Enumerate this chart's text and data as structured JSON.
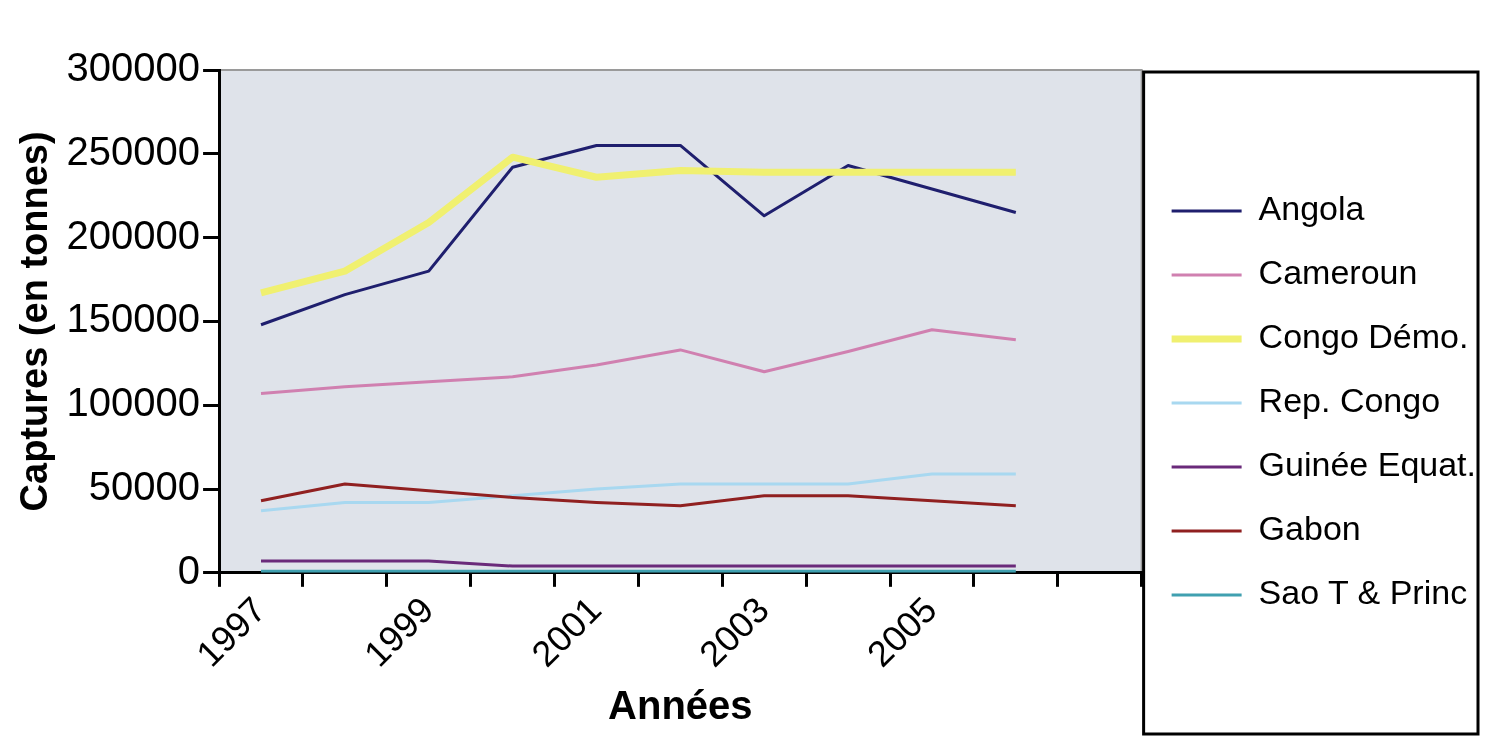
{
  "chart_data": {
    "type": "line",
    "xlabel": "Années",
    "ylabel": "Captures (en tonnes)",
    "categories": [
      "1997",
      null,
      "1999",
      null,
      "2001",
      null,
      "2003",
      null,
      "2005",
      null,
      null
    ],
    "series": [
      {
        "name": "Angola",
        "color": "#1f1f6e",
        "values": [
          148000,
          166000,
          180000,
          242000,
          255000,
          255000,
          213000,
          243000,
          229000,
          215000,
          null
        ]
      },
      {
        "name": "Cameroun",
        "color": "#d080b0",
        "values": [
          107000,
          111000,
          114000,
          117000,
          124000,
          133000,
          120000,
          132000,
          145000,
          139000,
          null
        ]
      },
      {
        "name": "Congo Démo.",
        "color": "#f0f070",
        "values": [
          167000,
          180000,
          209000,
          248000,
          236000,
          240000,
          239000,
          239000,
          239000,
          239000,
          null
        ]
      },
      {
        "name": "Rep. Congo",
        "color": "#a8d8f0",
        "values": [
          37000,
          42000,
          42000,
          46000,
          50000,
          53000,
          53000,
          53000,
          59000,
          59000,
          null
        ]
      },
      {
        "name": "Guinée Equat.",
        "color": "#6a2a7a",
        "values": [
          7000,
          7000,
          7000,
          4000,
          4000,
          4000,
          4000,
          4000,
          4000,
          4000,
          null
        ]
      },
      {
        "name": "Gabon",
        "color": "#902020",
        "values": [
          43000,
          53000,
          49000,
          45000,
          42000,
          40000,
          46000,
          46000,
          43000,
          40000,
          null
        ]
      },
      {
        "name": "Sao T & Princ",
        "color": "#40a0b0",
        "values": [
          1000,
          1000,
          1000,
          1000,
          1000,
          1000,
          1000,
          1000,
          1000,
          1000,
          null
        ]
      }
    ],
    "ylim": [
      0,
      300000
    ],
    "yticks": [
      0,
      50000,
      100000,
      150000,
      200000,
      250000,
      300000
    ],
    "legend": "right",
    "grid": false,
    "marker": "none",
    "line_style": "solid"
  }
}
